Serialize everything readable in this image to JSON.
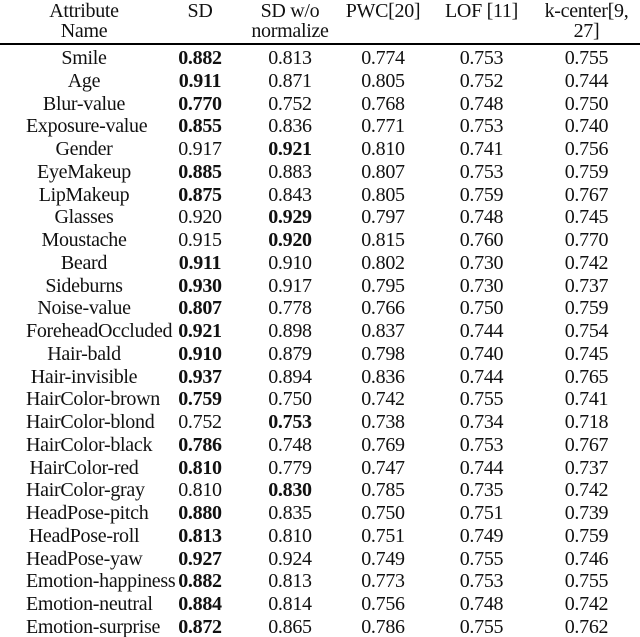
{
  "table": {
    "columns": [
      {
        "label": "Attribute Name"
      },
      {
        "label": "SD"
      },
      {
        "label": "SD w/o\nnormalize"
      },
      {
        "label": "PWC[20]"
      },
      {
        "label": "LOF [11]"
      },
      {
        "label": "k-center[9, 27]"
      }
    ],
    "rows": [
      {
        "attribute": "Smile",
        "values": [
          "0.882",
          "0.813",
          "0.774",
          "0.753",
          "0.755"
        ],
        "bold": 0
      },
      {
        "attribute": "Age",
        "values": [
          "0.911",
          "0.871",
          "0.805",
          "0.752",
          "0.744"
        ],
        "bold": 0
      },
      {
        "attribute": "Blur-value",
        "values": [
          "0.770",
          "0.752",
          "0.768",
          "0.748",
          "0.750"
        ],
        "bold": 0
      },
      {
        "attribute": "Exposure-value",
        "values": [
          "0.855",
          "0.836",
          "0.771",
          "0.753",
          "0.740"
        ],
        "bold": 0
      },
      {
        "attribute": "Gender",
        "values": [
          "0.917",
          "0.921",
          "0.810",
          "0.741",
          "0.756"
        ],
        "bold": 1
      },
      {
        "attribute": "EyeMakeup",
        "values": [
          "0.885",
          "0.883",
          "0.807",
          "0.753",
          "0.759"
        ],
        "bold": 0
      },
      {
        "attribute": "LipMakeup",
        "values": [
          "0.875",
          "0.843",
          "0.805",
          "0.759",
          "0.767"
        ],
        "bold": 0
      },
      {
        "attribute": "Glasses",
        "values": [
          "0.920",
          "0.929",
          "0.797",
          "0.748",
          "0.745"
        ],
        "bold": 1
      },
      {
        "attribute": "Moustache",
        "values": [
          "0.915",
          "0.920",
          "0.815",
          "0.760",
          "0.770"
        ],
        "bold": 1
      },
      {
        "attribute": "Beard",
        "values": [
          "0.911",
          "0.910",
          "0.802",
          "0.730",
          "0.742"
        ],
        "bold": 0
      },
      {
        "attribute": "Sideburns",
        "values": [
          "0.930",
          "0.917",
          "0.795",
          "0.730",
          "0.737"
        ],
        "bold": 0
      },
      {
        "attribute": "Noise-value",
        "values": [
          "0.807",
          "0.778",
          "0.766",
          "0.750",
          "0.759"
        ],
        "bold": 0
      },
      {
        "attribute": "ForeheadOccluded",
        "values": [
          "0.921",
          "0.898",
          "0.837",
          "0.744",
          "0.754"
        ],
        "bold": 0
      },
      {
        "attribute": "Hair-bald",
        "values": [
          "0.910",
          "0.879",
          "0.798",
          "0.740",
          "0.745"
        ],
        "bold": 0
      },
      {
        "attribute": "Hair-invisible",
        "values": [
          "0.937",
          "0.894",
          "0.836",
          "0.744",
          "0.765"
        ],
        "bold": 0
      },
      {
        "attribute": "HairColor-brown",
        "values": [
          "0.759",
          "0.750",
          "0.742",
          "0.755",
          "0.741"
        ],
        "bold": 0
      },
      {
        "attribute": "HairColor-blond",
        "values": [
          "0.752",
          "0.753",
          "0.738",
          "0.734",
          "0.718"
        ],
        "bold": 1
      },
      {
        "attribute": "HairColor-black",
        "values": [
          "0.786",
          "0.748",
          "0.769",
          "0.753",
          "0.767"
        ],
        "bold": 0
      },
      {
        "attribute": "HairColor-red",
        "values": [
          "0.810",
          "0.779",
          "0.747",
          "0.744",
          "0.737"
        ],
        "bold": 0
      },
      {
        "attribute": "HairColor-gray",
        "values": [
          "0.810",
          "0.830",
          "0.785",
          "0.735",
          "0.742"
        ],
        "bold": 1
      },
      {
        "attribute": "HeadPose-pitch",
        "values": [
          "0.880",
          "0.835",
          "0.750",
          "0.751",
          "0.739"
        ],
        "bold": 0
      },
      {
        "attribute": "HeadPose-roll",
        "values": [
          "0.813",
          "0.810",
          "0.751",
          "0.749",
          "0.759"
        ],
        "bold": 0
      },
      {
        "attribute": "HeadPose-yaw",
        "values": [
          "0.927",
          "0.924",
          "0.749",
          "0.755",
          "0.746"
        ],
        "bold": 0
      },
      {
        "attribute": "Emotion-happiness",
        "values": [
          "0.882",
          "0.813",
          "0.773",
          "0.753",
          "0.755"
        ],
        "bold": 0
      },
      {
        "attribute": "Emotion-neutral",
        "values": [
          "0.884",
          "0.814",
          "0.756",
          "0.748",
          "0.742"
        ],
        "bold": 0
      },
      {
        "attribute": "Emotion-surprise",
        "values": [
          "0.872",
          "0.865",
          "0.786",
          "0.755",
          "0.762"
        ],
        "bold": 0
      }
    ]
  },
  "colors": {
    "text": "#111111",
    "rule": "#000000",
    "background": "#ffffff"
  }
}
